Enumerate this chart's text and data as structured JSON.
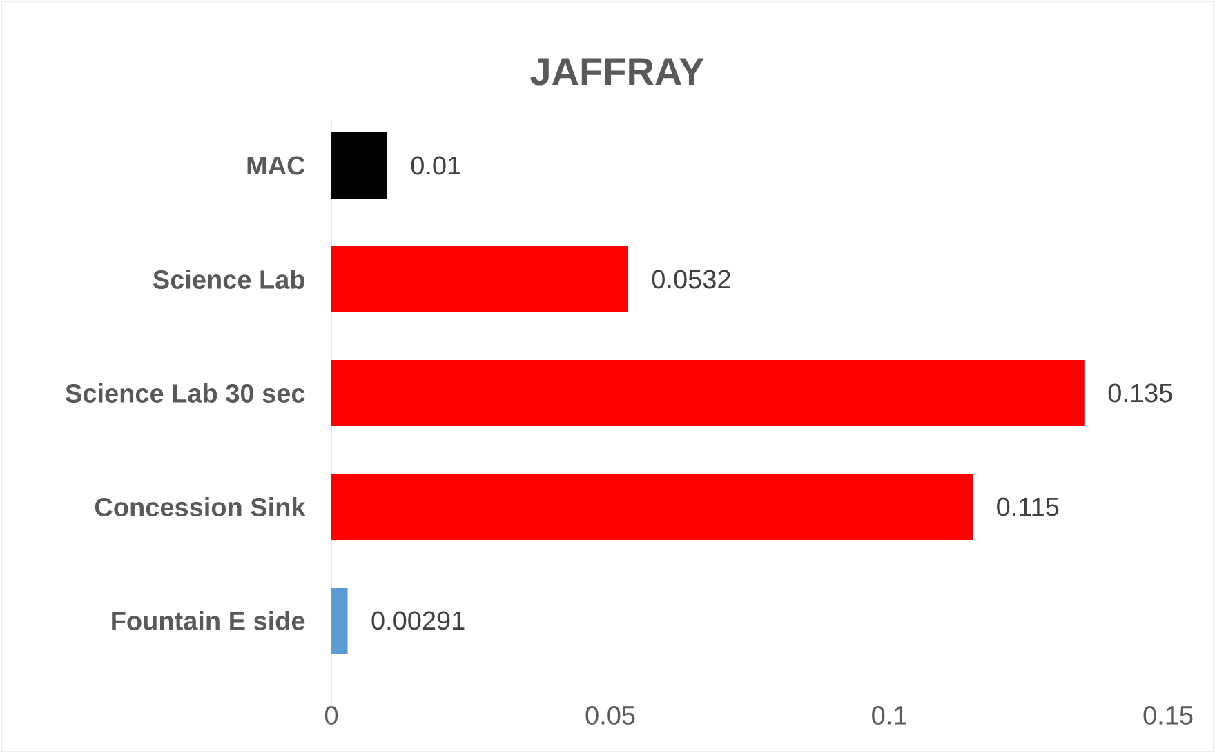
{
  "chart_data": {
    "type": "bar",
    "orientation": "horizontal",
    "title": "JAFFRAY",
    "categories": [
      "MAC",
      "Science Lab",
      "Science Lab 30 sec",
      "Concession Sink",
      "Fountain E side"
    ],
    "values": [
      0.01,
      0.0532,
      0.135,
      0.115,
      0.00291
    ],
    "colors": [
      "#000000",
      "#ff0000",
      "#ff0000",
      "#ff0000",
      "#5b9bd5"
    ],
    "xlim": [
      0,
      0.15
    ],
    "xticks": [
      0,
      0.05,
      0.1,
      0.15
    ],
    "data_labels": true
  }
}
